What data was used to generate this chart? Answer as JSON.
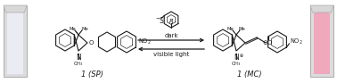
{
  "bg_color": "#ffffff",
  "structure_color": "#1a1a1a",
  "sp_label": "1 (SP)",
  "mc_label": "1 (MC)",
  "dark_text": "dark",
  "light_text": "visible light",
  "font_size_label": 6.0,
  "font_size_arrow": 5.0,
  "font_size_chem": 5.0,
  "cuvette_left_fill": "#f0f0f2",
  "cuvette_right_fill": "#f0a0b5",
  "cuvette_border": "#c0c0c0",
  "cuvette_left_liq": "#eeeef5",
  "cuvette_right_liq": "#f0a8ba",
  "arrow_lw": 0.9
}
